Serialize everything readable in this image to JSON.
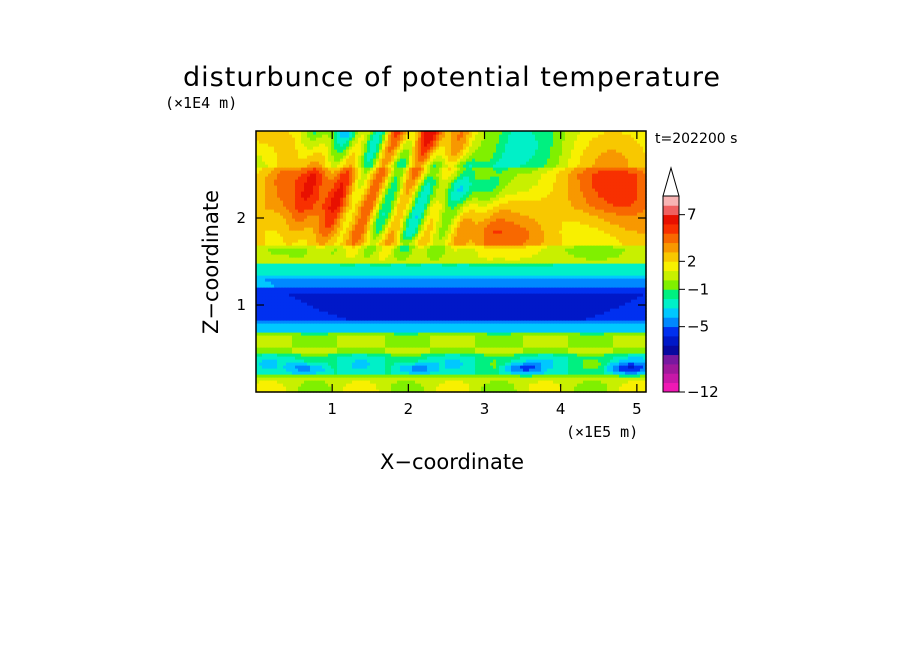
{
  "chart_data": {
    "type": "heatmap",
    "title": "disturbunce of potential temperature",
    "xlabel": "X−coordinate",
    "ylabel": "Z−coordinate",
    "x_unit": "(×1E5 m)",
    "y_unit": "(×1E4 m)",
    "time_label": "t=202200 s",
    "xlim": [
      0,
      5.12
    ],
    "ylim": [
      0,
      3.0
    ],
    "x_ticks": [
      {
        "value": 1,
        "label": "1"
      },
      {
        "value": 2,
        "label": "2"
      },
      {
        "value": 3,
        "label": "3"
      },
      {
        "value": 4,
        "label": "4"
      },
      {
        "value": 5,
        "label": "5"
      }
    ],
    "y_ticks": [
      {
        "value": 1,
        "label": "1"
      },
      {
        "value": 2,
        "label": "2"
      }
    ],
    "colorbar": {
      "levels": [
        -12,
        -11,
        -10,
        -9,
        -8,
        -7,
        -6,
        -5,
        -4,
        -3,
        -2,
        -1,
        0,
        1,
        2,
        3,
        4,
        5,
        6,
        7,
        8,
        9
      ],
      "colors": [
        "#f018b4",
        "#c818a8",
        "#a0189c",
        "#7818a0",
        "#0808a0",
        "#0018c8",
        "#0030f0",
        "#0088ff",
        "#00c8ff",
        "#00f0c8",
        "#00f080",
        "#80f000",
        "#c8f000",
        "#f8f000",
        "#f8c800",
        "#f89800",
        "#f86800",
        "#f83000",
        "#e81000",
        "#f06060",
        "#f8b4b4"
      ],
      "labels": [
        {
          "value": -12,
          "label": "−12"
        },
        {
          "value": -5,
          "label": "−5"
        },
        {
          "value": -1,
          "label": "−1"
        },
        {
          "value": 2,
          "label": "2"
        },
        {
          "value": 7,
          "label": "7"
        }
      ],
      "extend": "max"
    },
    "bands": [
      {
        "z": [
          0.0,
          0.2
        ],
        "base": 0.5
      },
      {
        "z": [
          0.2,
          0.45
        ],
        "base": -2.0
      },
      {
        "z": [
          0.45,
          0.7
        ],
        "base": 0.0
      },
      {
        "z": [
          0.7,
          0.82
        ],
        "base": -3.5
      },
      {
        "z": [
          0.82,
          1.22
        ],
        "base": -6.0
      },
      {
        "z": [
          1.22,
          1.35
        ],
        "base": -4.0
      },
      {
        "z": [
          1.35,
          1.5
        ],
        "base": -2.0
      },
      {
        "z": [
          1.5,
          1.7
        ],
        "base": 0.5
      },
      {
        "z": [
          1.7,
          2.1
        ],
        "base": 2.5
      },
      {
        "z": [
          2.1,
          2.6
        ],
        "base": 3.0
      },
      {
        "z": [
          2.6,
          3.0
        ],
        "base": 1.0
      }
    ]
  }
}
